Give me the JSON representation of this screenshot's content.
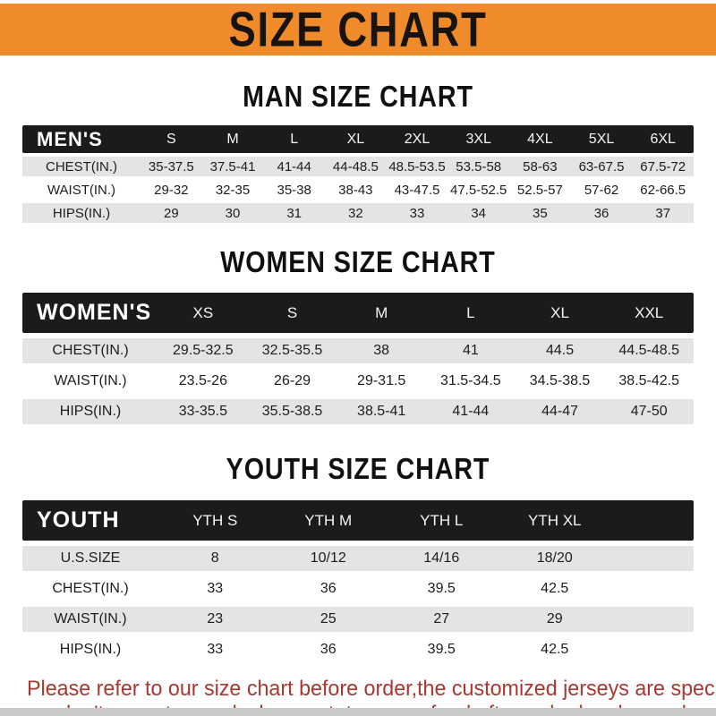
{
  "banner": {
    "title": "SIZE CHART"
  },
  "tables": [
    {
      "heading": "MAN SIZE CHART",
      "label": "MEN'S",
      "columns": [
        "S",
        "M",
        "L",
        "XL",
        "2XL",
        "3XL",
        "4XL",
        "5XL",
        "6XL"
      ],
      "rows": [
        {
          "label": "CHEST(IN.)",
          "values": [
            "35-37.5",
            "37.5-41",
            "41-44",
            "44-48.5",
            "48.5-53.5",
            "53.5-58",
            "58-63",
            "63-67.5",
            "67.5-72"
          ]
        },
        {
          "label": "WAIST(IN.)",
          "values": [
            "29-32",
            "32-35",
            "35-38",
            "38-43",
            "43-47.5",
            "47.5-52.5",
            "52.5-57",
            "57-62",
            "62-66.5"
          ]
        },
        {
          "label": "HIPS(IN.)",
          "values": [
            "29",
            "30",
            "31",
            "32",
            "33",
            "34",
            "35",
            "36",
            "37"
          ]
        }
      ]
    },
    {
      "heading": "WOMEN SIZE CHART",
      "label": "WOMEN'S",
      "columns": [
        "XS",
        "S",
        "M",
        "L",
        "XL",
        "XXL"
      ],
      "rows": [
        {
          "label": "CHEST(IN.)",
          "values": [
            "29.5-32.5",
            "32.5-35.5",
            "38",
            "41",
            "44.5",
            "44.5-48.5"
          ]
        },
        {
          "label": "WAIST(IN.)",
          "values": [
            "23.5-26",
            "26-29",
            "29-31.5",
            "31.5-34.5",
            "34.5-38.5",
            "38.5-42.5"
          ]
        },
        {
          "label": "HIPS(IN.)",
          "values": [
            "33-35.5",
            "35.5-38.5",
            "38.5-41",
            "41-44",
            "44-47",
            "47-50"
          ]
        }
      ]
    },
    {
      "heading": "YOUTH SIZE CHART",
      "label": "YOUTH",
      "columns": [
        "YTH S",
        "YTH M",
        "YTH L",
        "YTH XL"
      ],
      "rows": [
        {
          "label": "U.S.SIZE",
          "values": [
            "8",
            "10/12",
            "14/16",
            "18/20"
          ]
        },
        {
          "label": "CHEST(IN.)",
          "values": [
            "33",
            "36",
            "39.5",
            "42.5"
          ]
        },
        {
          "label": "WAIST(IN.)",
          "values": [
            "23",
            "25",
            "27",
            "29"
          ]
        },
        {
          "label": "HIPS(IN.)",
          "values": [
            "33",
            "36",
            "39.5",
            "42.5"
          ]
        }
      ]
    }
  ],
  "footer": {
    "line1": "Please refer to our size chart before order,the customized jerseys are special products,",
    "line2": "we don't accept cancel, change, teturn or refund after order has been placed!"
  },
  "colors": {
    "banner_bg": "#EF8B2A",
    "header_bg": "#1B1B1B",
    "row_alt_bg": "#E4E4E4",
    "footer_text": "#A83830"
  }
}
